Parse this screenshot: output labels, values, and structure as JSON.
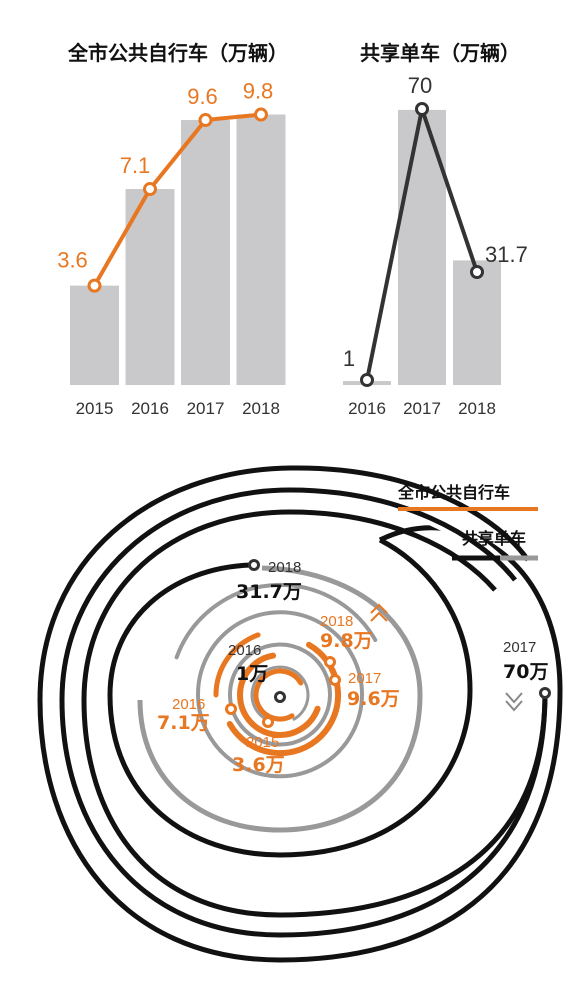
{
  "colors": {
    "public_bike": "#e87722",
    "shared_bike": "#333333",
    "bar": "#c9c8ca",
    "bar_edge": "#aaaaaa",
    "spiral_gray": "#999999"
  },
  "chart_data": [
    {
      "type": "bar",
      "title": "全市公共自行车（万辆）",
      "categories": [
        "2015",
        "2016",
        "2017",
        "2018"
      ],
      "values": [
        3.6,
        7.1,
        9.6,
        9.8
      ],
      "labels": [
        "3.6",
        "7.1",
        "9.6",
        "9.8"
      ],
      "overlay": "line",
      "color": "#e87722"
    },
    {
      "type": "bar",
      "title": "共享单车（万辆）",
      "categories": [
        "2016",
        "2017",
        "2018"
      ],
      "values": [
        1,
        70,
        31.7
      ],
      "labels": [
        "1",
        "70",
        "31.7"
      ],
      "overlay": "line",
      "color": "#333333"
    }
  ],
  "spiral": {
    "legend": [
      {
        "name": "全市公共自行车",
        "color": "#e87722"
      },
      {
        "name": "共享单车",
        "color": "#111111"
      }
    ],
    "public_bike_labels": [
      {
        "year": "2015",
        "value": "3.6万"
      },
      {
        "year": "2016",
        "value": "7.1万"
      },
      {
        "year": "2017",
        "value": "9.6万"
      },
      {
        "year": "2018",
        "value": "9.8万"
      }
    ],
    "shared_bike_labels": [
      {
        "year": "2016",
        "value": "1万"
      },
      {
        "year": "2017",
        "value": "70万"
      },
      {
        "year": "2018",
        "value": "31.7万"
      }
    ]
  }
}
